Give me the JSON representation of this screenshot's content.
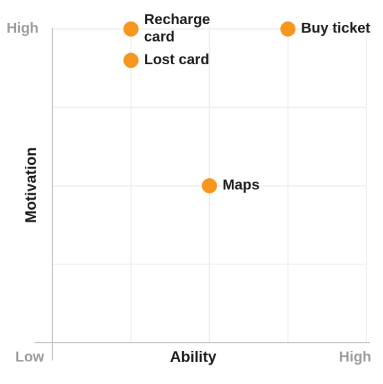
{
  "chart_data": {
    "type": "scatter",
    "title": "",
    "xlabel": "Ability",
    "ylabel": "Motivation",
    "x_tick_labels": {
      "low": "Low",
      "high": "High"
    },
    "y_tick_labels": {
      "low": "Low",
      "high": "High"
    },
    "xlim": [
      0,
      4
    ],
    "ylim": [
      0,
      4
    ],
    "grid": true,
    "point_color": "#f5961e",
    "points": [
      {
        "label_lines": [
          "Recharge",
          "card"
        ],
        "x": 1,
        "y": 4
      },
      {
        "label_lines": [
          "Lost card"
        ],
        "x": 1,
        "y": 3.6
      },
      {
        "label_lines": [
          "Buy ticket"
        ],
        "x": 3,
        "y": 4
      },
      {
        "label_lines": [
          "Maps"
        ],
        "x": 2,
        "y": 2
      }
    ]
  }
}
